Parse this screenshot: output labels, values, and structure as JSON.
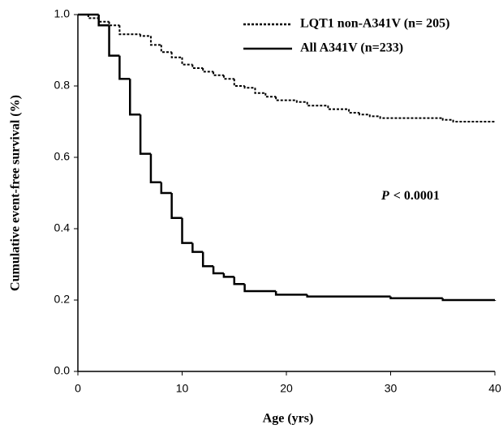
{
  "chart_data": {
    "type": "step",
    "x_label": "Age (yrs)",
    "y_label": "Cumulative event-free survival (%)",
    "annotation": {
      "italic": "P",
      "text": "< 0.0001"
    },
    "xlim": [
      0,
      40
    ],
    "ylim": [
      0,
      1
    ],
    "xticks": [
      0,
      10,
      20,
      30,
      40
    ],
    "yticks": [
      {
        "value": 0,
        "label": "0.0"
      },
      0.2,
      0.4,
      0.6,
      0.8,
      {
        "value": 1,
        "label": "1.0"
      }
    ],
    "legend": "upper right",
    "series": [
      {
        "name": "LQT1 non-A341V (n= 205)",
        "color": "#000000",
        "dash": "dotted",
        "x": [
          0,
          1,
          2,
          3,
          4,
          6,
          7,
          8,
          9,
          10,
          11,
          12,
          13,
          14,
          15,
          16,
          17,
          18,
          19,
          21,
          22,
          24,
          26,
          27,
          28,
          29,
          35,
          36,
          40
        ],
        "values": [
          1.0,
          0.99,
          0.98,
          0.97,
          0.945,
          0.94,
          0.915,
          0.895,
          0.88,
          0.86,
          0.85,
          0.84,
          0.83,
          0.82,
          0.8,
          0.795,
          0.78,
          0.77,
          0.76,
          0.755,
          0.745,
          0.735,
          0.725,
          0.72,
          0.715,
          0.71,
          0.705,
          0.7,
          0.7
        ]
      },
      {
        "name": "All A341V (n=233)",
        "color": "#000000",
        "dash": "solid",
        "x": [
          0,
          2,
          3,
          4,
          5,
          6,
          7,
          8,
          9,
          10,
          11,
          12,
          13,
          14,
          15,
          16,
          19,
          22,
          30,
          35,
          40
        ],
        "values": [
          1.0,
          0.97,
          0.885,
          0.82,
          0.72,
          0.61,
          0.53,
          0.5,
          0.43,
          0.36,
          0.335,
          0.295,
          0.275,
          0.265,
          0.245,
          0.225,
          0.215,
          0.21,
          0.205,
          0.2,
          0.198
        ]
      }
    ]
  }
}
